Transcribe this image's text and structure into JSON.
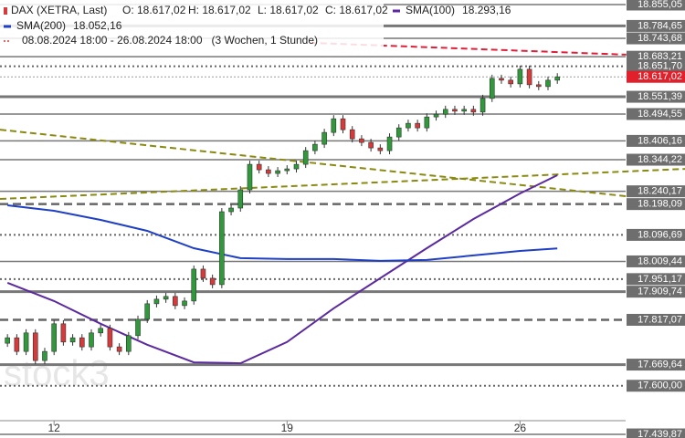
{
  "chart_data": {
    "type": "candlestick",
    "legend": {
      "instrument": "DAX (XETRA, Last)",
      "ohlc": [
        "O: 18.617,02",
        "H: 18.617,02",
        "L: 18.617,02",
        "C: 18.617,02"
      ],
      "range": "08.08.2024 18:00 - 26.08.2024 18:00",
      "period": "(3 Wochen, 1 Stunde)"
    },
    "watermark": "stock3",
    "xlim": [
      -0.8,
      72.7
    ],
    "xticks": [
      {
        "value": 5,
        "label": "12"
      },
      {
        "value": 30,
        "label": "19"
      },
      {
        "value": 55,
        "label": "26"
      }
    ],
    "ylim": [
      17428,
      18870
    ],
    "up_color": "#2f9a3a",
    "down_color": "#d63a3a",
    "open": [
      17740,
      17758,
      17713,
      17774,
      17683,
      17713,
      17804,
      17744,
      17758,
      17728,
      17774,
      17789,
      17728,
      17713,
      17765,
      17819,
      17870,
      17885,
      17894,
      17864,
      17879,
      17984,
      17954,
      17933,
      18173,
      18185,
      18245,
      18329,
      18311,
      18299,
      18308,
      18314,
      18329,
      18374,
      18395,
      18434,
      18479,
      18443,
      18413,
      18401,
      18383,
      18374,
      18419,
      18449,
      18464,
      18449,
      18485,
      18494,
      18510,
      18504,
      18510,
      18501,
      18546,
      18612,
      18606,
      18594,
      18642,
      18591,
      18585,
      18606
    ],
    "high": [
      17770,
      17770,
      17786,
      17786,
      17725,
      17816,
      17816,
      17770,
      17770,
      17786,
      17801,
      17801,
      17740,
      17777,
      17831,
      17882,
      17897,
      17906,
      17906,
      17891,
      17996,
      17996,
      17966,
      18185,
      18197,
      18257,
      18341,
      18341,
      18323,
      18320,
      18326,
      18341,
      18386,
      18407,
      18446,
      18491,
      18491,
      18455,
      18425,
      18413,
      18395,
      18431,
      18461,
      18476,
      18476,
      18497,
      18506,
      18522,
      18522,
      18522,
      18522,
      18558,
      18624,
      18624,
      18618,
      18654,
      18654,
      18603,
      18618,
      18629
    ],
    "low": [
      17728,
      17701,
      17701,
      17671,
      17671,
      17701,
      17732,
      17732,
      17716,
      17716,
      17762,
      17716,
      17701,
      17701,
      17753,
      17807,
      17858,
      17873,
      17852,
      17852,
      17867,
      17942,
      17921,
      17921,
      18161,
      18173,
      18233,
      18299,
      18287,
      18287,
      18296,
      18302,
      18317,
      18362,
      18383,
      18422,
      18431,
      18401,
      18389,
      18371,
      18362,
      18362,
      18407,
      18437,
      18437,
      18437,
      18473,
      18482,
      18492,
      18492,
      18489,
      18489,
      18534,
      18594,
      18582,
      18582,
      18579,
      18573,
      18573,
      18594
    ],
    "close": [
      17758,
      17713,
      17774,
      17683,
      17713,
      17804,
      17744,
      17758,
      17728,
      17774,
      17789,
      17728,
      17713,
      17765,
      17819,
      17870,
      17885,
      17894,
      17864,
      17879,
      17984,
      17954,
      17933,
      18173,
      18185,
      18245,
      18329,
      18311,
      18299,
      18308,
      18314,
      18329,
      18374,
      18395,
      18434,
      18479,
      18443,
      18413,
      18401,
      18383,
      18374,
      18419,
      18449,
      18464,
      18449,
      18485,
      18494,
      18510,
      18504,
      18510,
      18501,
      18546,
      18612,
      18606,
      18594,
      18642,
      18591,
      18585,
      18606,
      18617.02
    ],
    "series": [
      {
        "name": "SMA(100)",
        "value_label": "18.293,16",
        "color": "#5b2a9e",
        "x": [
          0,
          5,
          10,
          15,
          20,
          25,
          30,
          35,
          40,
          45,
          50,
          55,
          59
        ],
        "values": [
          17939,
          17879,
          17804,
          17735,
          17677,
          17674,
          17744,
          17855,
          17954,
          18053,
          18149,
          18233,
          18293.16
        ]
      },
      {
        "name": "SMA(200)",
        "value_label": "18.052,16",
        "color": "#1f3fc4",
        "x": [
          0,
          5,
          10,
          15,
          20,
          25,
          30,
          35,
          40,
          45,
          50,
          55,
          59
        ],
        "values": [
          18194,
          18176,
          18146,
          18110,
          18053,
          18020,
          18017,
          18017,
          18011,
          18014,
          18029,
          18044,
          18052.16
        ]
      }
    ],
    "trendlines": [
      {
        "color": "#e0203a",
        "x": [
          32.5,
          66.4
        ],
        "values": [
          18729,
          18690
        ]
      },
      {
        "color": "#8a8a10",
        "x": [
          -0.8,
          66.4
        ],
        "values": [
          18443,
          18224
        ]
      },
      {
        "color": "#8a8a10",
        "x": [
          -0.8,
          72.7
        ],
        "values": [
          18215,
          18314
        ]
      }
    ],
    "levels": [
      {
        "value": 18855.05,
        "label": "18.855,05",
        "style": "solid"
      },
      {
        "value": 18784.65,
        "label": "18.784,65",
        "style": "thick"
      },
      {
        "value": 18743.68,
        "label": "18.743,68",
        "style": "solid"
      },
      {
        "value": 18683.21,
        "label": "18.683,21",
        "style": "solid"
      },
      {
        "value": 18651.7,
        "label": "18.651,70",
        "style": "dotted"
      },
      {
        "value": 18617.02,
        "label": "18.617,02",
        "style": "current"
      },
      {
        "value": 18551.39,
        "label": "18.551,39",
        "style": "thick"
      },
      {
        "value": 18494.55,
        "label": "18.494,55",
        "style": "solid"
      },
      {
        "value": 18406.16,
        "label": "18.406,16",
        "style": "solid"
      },
      {
        "value": 18344.22,
        "label": "18.344,22",
        "style": "solid"
      },
      {
        "value": 18240.17,
        "label": "18.240,17",
        "style": "solid"
      },
      {
        "value": 18198.09,
        "label": "18.198,09",
        "style": "dashed"
      },
      {
        "value": 18096.69,
        "label": "18.096,69",
        "style": "dotted"
      },
      {
        "value": 18009.44,
        "label": "18.009,44",
        "style": "solid"
      },
      {
        "value": 17951.17,
        "label": "17.951,17",
        "style": "dotted"
      },
      {
        "value": 17909.74,
        "label": "17.909,74",
        "style": "thick"
      },
      {
        "value": 17817.07,
        "label": "17.817,07",
        "style": "dashed"
      },
      {
        "value": 17669.64,
        "label": "17.669,64",
        "style": "thick"
      },
      {
        "value": 17600.0,
        "label": "17.600,00",
        "style": "dotted"
      },
      {
        "value": 17439.87,
        "label": "17.439,87",
        "style": "solid"
      }
    ]
  }
}
